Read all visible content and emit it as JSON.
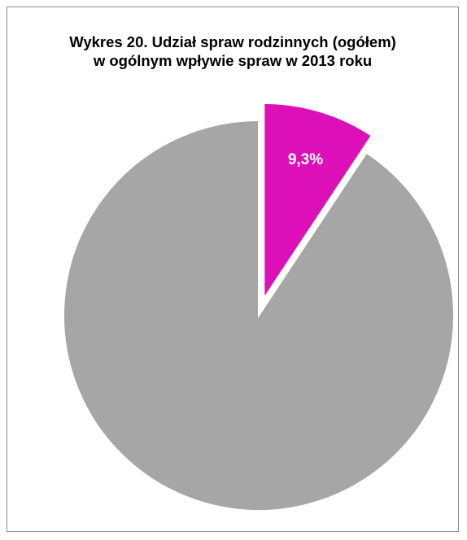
{
  "chart_data": {
    "type": "pie",
    "title": "Wykres 20. Udział spraw rodzinnych (ogółem)",
    "subtitle": "w ogólnym wpływie spraw w 2013 roku",
    "slices": [
      {
        "value": 9.3,
        "label": "9,3%",
        "color": "#dc0fb9",
        "exploded": true
      },
      {
        "value": 90.7,
        "label": "",
        "color": "#a6a6a6",
        "exploded": false
      }
    ],
    "start_angle_deg": 0,
    "direction": "clockwise",
    "legend": "none"
  }
}
